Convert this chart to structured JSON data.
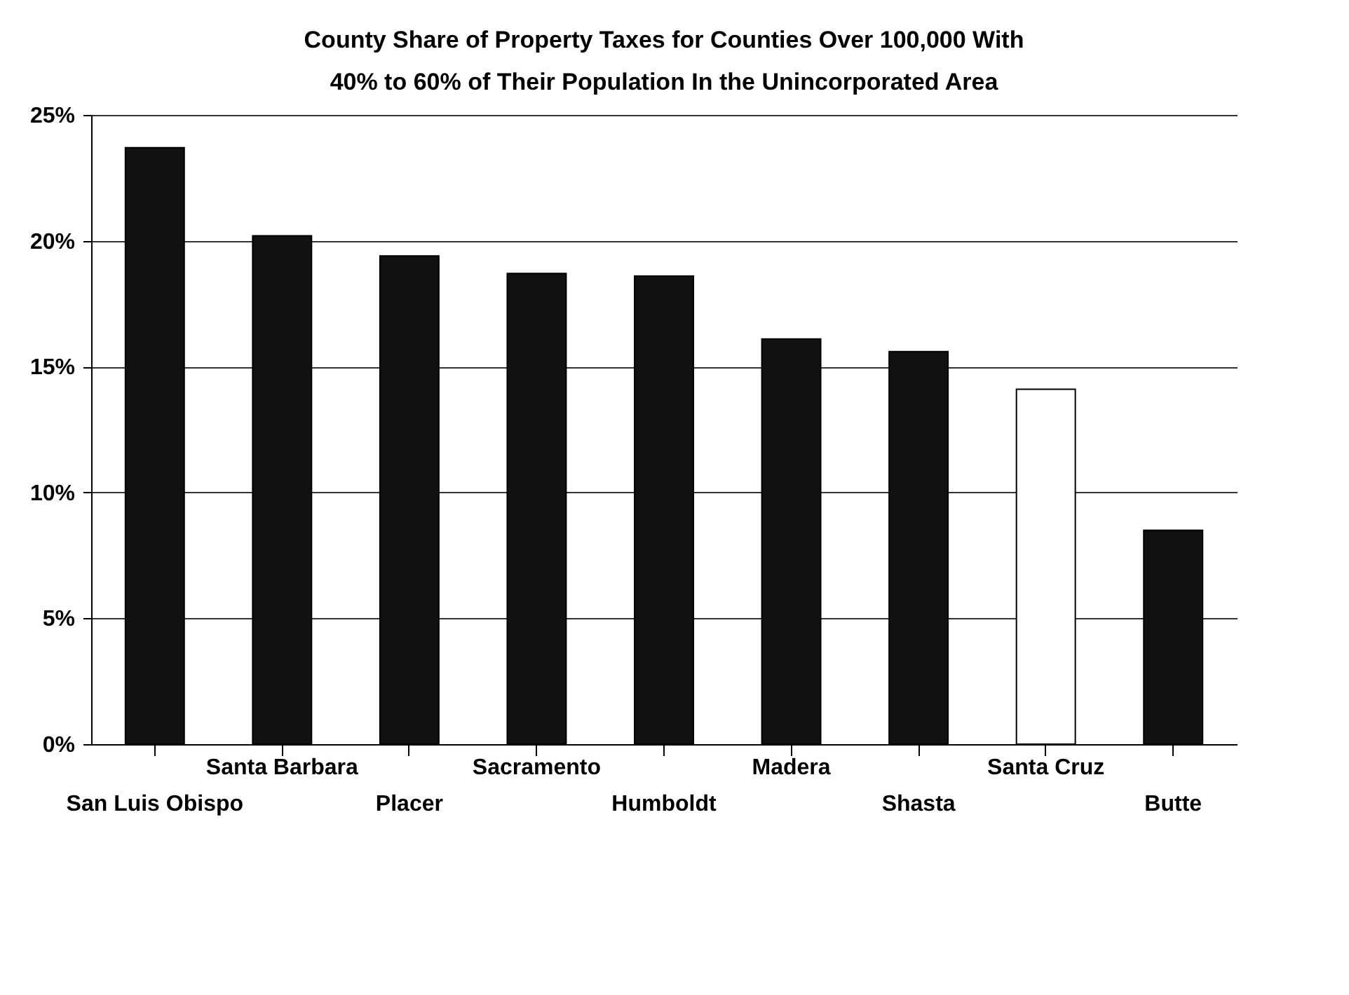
{
  "chart_data": {
    "type": "bar",
    "title": "County Share of Property Taxes for Counties Over 100,000 With\n40% to 60% of Their Population In the Unincorporated Area",
    "categories": [
      "San Luis Obispo",
      "Santa Barbara",
      "Placer",
      "Sacramento",
      "Humboldt",
      "Madera",
      "Shasta",
      "Santa Cruz",
      "Butte"
    ],
    "values": [
      23.7,
      20.2,
      19.4,
      18.7,
      18.6,
      16.1,
      15.6,
      14.1,
      8.5
    ],
    "colors": [
      "#111111",
      "#111111",
      "#111111",
      "#111111",
      "#111111",
      "#111111",
      "#111111",
      "#ffffff",
      "#111111"
    ],
    "ylim": [
      0,
      25
    ],
    "yticks": [
      {
        "value": 0,
        "label": "0%"
      },
      {
        "value": 5,
        "label": "5%"
      },
      {
        "value": 10,
        "label": "10%"
      },
      {
        "value": 15,
        "label": "15%"
      },
      {
        "value": 20,
        "label": "20%"
      },
      {
        "value": 25,
        "label": "25%"
      }
    ],
    "grid": "y"
  }
}
